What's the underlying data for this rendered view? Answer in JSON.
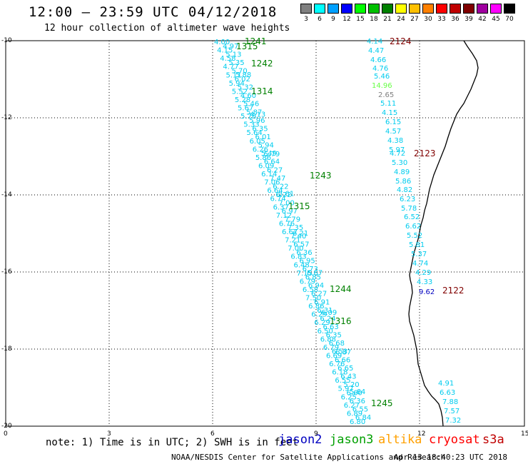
{
  "header": {
    "title": "12:00 — 23:59 UTC 04/12/2018",
    "subtitle": "12 hour collection of altimeter wave heights"
  },
  "legend": {
    "bins": [
      {
        "label": "3",
        "color": "#808080"
      },
      {
        "label": "6",
        "color": "#00ffff"
      },
      {
        "label": "9",
        "color": "#00a0ff"
      },
      {
        "label": "12",
        "color": "#0000ff"
      },
      {
        "label": "15",
        "color": "#00ff00"
      },
      {
        "label": "18",
        "color": "#00c000"
      },
      {
        "label": "21",
        "color": "#008000"
      },
      {
        "label": "24",
        "color": "#ffff00"
      },
      {
        "label": "27",
        "color": "#ffc000"
      },
      {
        "label": "30",
        "color": "#ff8000"
      },
      {
        "label": "33",
        "color": "#ff0000"
      },
      {
        "label": "36",
        "color": "#c00000"
      },
      {
        "label": "39",
        "color": "#800000"
      },
      {
        "label": "42",
        "color": "#a000a0"
      },
      {
        "label": "45",
        "color": "#ff00ff"
      },
      {
        "label": "70",
        "color": "#000000"
      }
    ],
    "unit": "(ft)"
  },
  "axes": {
    "lat_labels": [
      "-10",
      "-12",
      "-14",
      "-16",
      "-18",
      "-20"
    ],
    "lon_labels": [
      "0",
      "3",
      "6",
      "9",
      "12",
      "15"
    ]
  },
  "passes": [
    {
      "id": "1241",
      "color": "#008000"
    },
    {
      "id": "1315",
      "color": "#008000"
    },
    {
      "id": "1242",
      "color": "#008000"
    },
    {
      "id": "1314",
      "color": "#008000"
    },
    {
      "id": "1243",
      "color": "#008000"
    },
    {
      "id": "1315",
      "color": "#008000"
    },
    {
      "id": "1244",
      "color": "#008000"
    },
    {
      "id": "1316",
      "color": "#008000"
    },
    {
      "id": "1245",
      "color": "#008000"
    },
    {
      "id": "2124",
      "color": "#800000"
    },
    {
      "id": "2123",
      "color": "#800000"
    },
    {
      "id": "2122",
      "color": "#800000"
    }
  ],
  "track1": [
    "4.00",
    "4.97",
    "4.15",
    "5.13",
    "4.58",
    "5.35",
    "4.77",
    "5.70",
    "5.11",
    "6.02",
    "5.94",
    "5.32",
    "5.52",
    "4.60",
    "5.28",
    "5.46",
    "5.67",
    "5.87",
    "5.78",
    "5.96",
    "5.33",
    "6.35",
    "5.64",
    "6.01",
    "6.05",
    "5.94",
    "6.26",
    "5.49",
    "5.86",
    "6.64",
    "6.09",
    "6.27",
    "6.14",
    "7.47",
    "7.06",
    "6.22",
    "6.64",
    "6.22",
    "6.74",
    "7.00",
    "6.37",
    "6.97",
    "7.12",
    "7.79",
    "6.76",
    "7.35",
    "6.67",
    "7.40",
    "7.21",
    "6.57",
    "7.00",
    "6.36",
    "6.83",
    "6.95",
    "6.48",
    "6.73",
    "7.15",
    "6.85",
    "6.79",
    "6.94",
    "6.58",
    "6.27",
    "7.50",
    "6.91",
    "6.86",
    "6.31",
    "6.29",
    "6.24",
    "6.29",
    "6.63",
    "6.50",
    "6.35",
    "6.88",
    "6.68",
    "6.79",
    "6.53",
    "6.69",
    "6.66",
    "6.76",
    "6.65",
    "6.18",
    "6.43",
    "6.55",
    "5.20",
    "5.97",
    "6.60",
    "6.25",
    "6.36",
    "6.27",
    "6.55",
    "6.89",
    "6.84",
    "6.80"
  ],
  "track1_extra": [
    "5.88",
    "4.13",
    "5.79",
    "5.61",
    "6.21",
    "6.67",
    "6.09",
    "6.87",
    "5.64"
  ],
  "track2": [
    "4.14",
    "4.47",
    "4.66",
    "4.76",
    "5.46",
    "14.96",
    "2.65",
    "5.11",
    "4.15",
    "6.15",
    "4.57",
    "4.38",
    "5.97",
    "4.72",
    "5.30",
    "4.89",
    "5.86",
    "4.82",
    "6.23",
    "5.78",
    "6.52",
    "6.62",
    "5.52",
    "5.81",
    "5.37",
    "4.74",
    "4.29",
    "4.33",
    "9.62"
  ],
  "track3": [
    "4.91",
    "6.63",
    "7.88",
    "7.57",
    "7.32"
  ],
  "note": "note: 1) Time is in UTC; 2) SWH is in feet",
  "satellites": [
    {
      "name": "jason2",
      "color": "#0000c0"
    },
    {
      "name": "jason3",
      "color": "#00a000"
    },
    {
      "name": "altika",
      "color": "#ffa000"
    },
    {
      "name": "cryosat",
      "color": "#ff0000"
    },
    {
      "name": "s3a",
      "color": "#c00000"
    }
  ],
  "footer": "NOAA/NESDIS Center for Satellite Applications and Research",
  "timestamp": "Apr 13 18:40:23 UTC 2018"
}
